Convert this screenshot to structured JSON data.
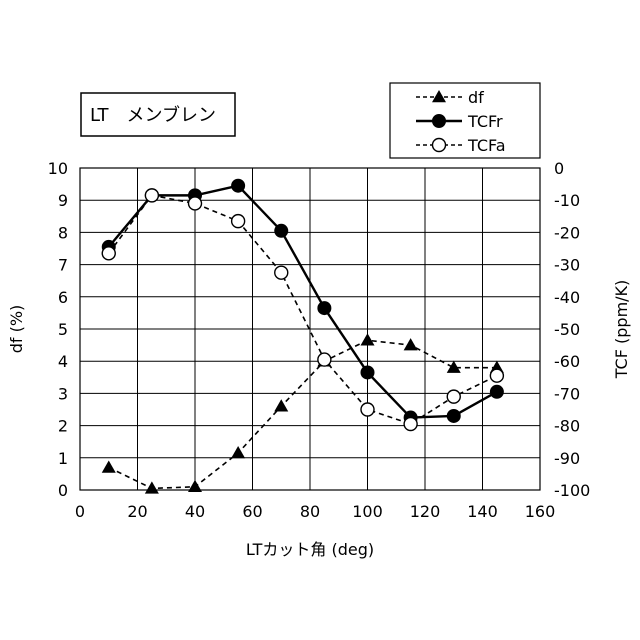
{
  "chart_data": {
    "type": "line",
    "title_box": "LT　メンブレン",
    "xlabel": "LTカット角 (deg)",
    "ylabel_left": "df (%)",
    "ylabel_right": "TCF (ppm/K)",
    "xlim": [
      0,
      160
    ],
    "xticks": [
      0,
      20,
      40,
      60,
      80,
      100,
      120,
      140,
      160
    ],
    "ylim_left": [
      0,
      10
    ],
    "yticks_left": [
      0,
      1,
      2,
      3,
      4,
      5,
      6,
      7,
      8,
      9,
      10
    ],
    "ylim_right": [
      -100,
      0
    ],
    "yticks_right": [
      0,
      -10,
      -20,
      -30,
      -40,
      -50,
      -60,
      -70,
      -80,
      -90,
      -100
    ],
    "grid": true,
    "legend_position": "top-right",
    "series": [
      {
        "name": "df",
        "axis": "left",
        "marker": "filled-triangle",
        "line": "dashed",
        "x": [
          10,
          25,
          40,
          55,
          70,
          85,
          100,
          115,
          130,
          145
        ],
        "y": [
          0.7,
          0.05,
          0.1,
          1.15,
          2.6,
          4.0,
          4.65,
          4.5,
          3.8,
          3.8
        ]
      },
      {
        "name": "TCFr",
        "axis": "right",
        "marker": "filled-circle",
        "line": "solid",
        "x": [
          10,
          25,
          40,
          55,
          70,
          85,
          100,
          115,
          130,
          145
        ],
        "y": [
          -24.5,
          -8.5,
          -8.5,
          -5.5,
          -19.5,
          -43.5,
          -63.5,
          -77.5,
          -77.0,
          -69.5
        ]
      },
      {
        "name": "TCFa",
        "axis": "right",
        "marker": "open-circle",
        "line": "dashed",
        "x": [
          10,
          25,
          40,
          55,
          70,
          85,
          100,
          115,
          130,
          145
        ],
        "y": [
          -26.5,
          -8.5,
          -11.0,
          -16.5,
          -32.5,
          -59.5,
          -75.0,
          -79.5,
          -71.0,
          -64.5
        ]
      }
    ]
  }
}
